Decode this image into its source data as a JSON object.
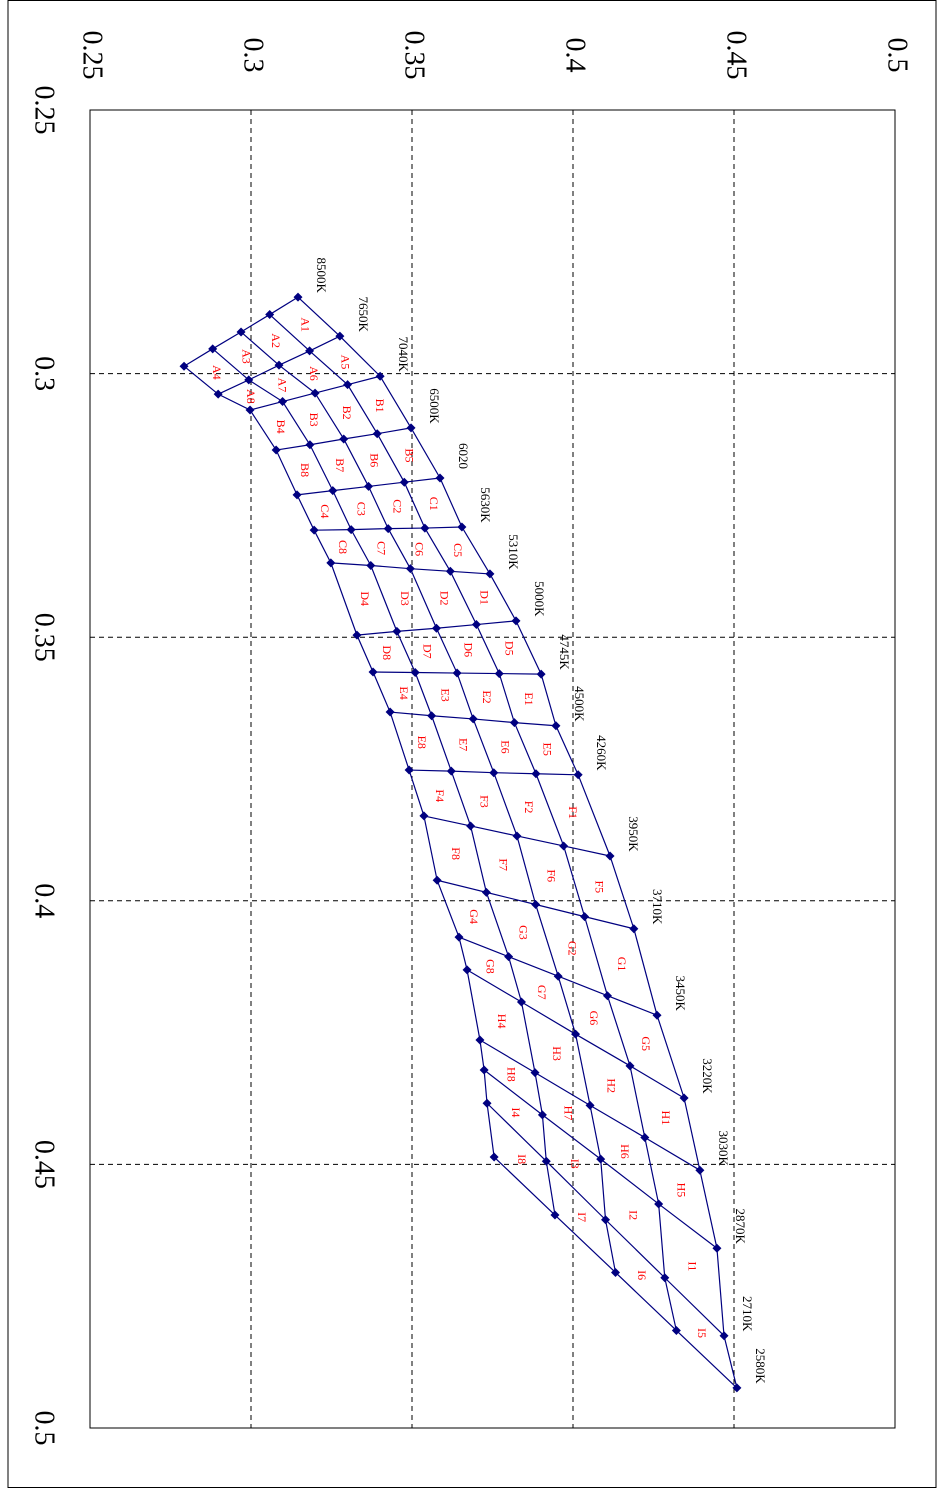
{
  "chart_data": {
    "type": "bin-grid",
    "xlim": [
      0.25,
      0.5
    ],
    "ylim": [
      0.25,
      0.5
    ],
    "xticks": [
      0.25,
      0.3,
      0.35,
      0.4,
      0.45,
      0.5
    ],
    "yticks": [
      0.25,
      0.3,
      0.35,
      0.4,
      0.45,
      0.5
    ],
    "grid": true,
    "color": "#000080",
    "label_color": "#ff0000",
    "lines": [
      {
        "name": "8500K",
        "x": [
          0.2855,
          0.2888,
          0.2921,
          0.2953,
          0.2986
        ],
        "y": [
          0.3146,
          0.3058,
          0.2969,
          0.2881,
          0.2792
        ]
      },
      {
        "name": "7650K",
        "x": [
          0.2929,
          0.2957,
          0.2984,
          0.3012,
          0.3039
        ],
        "y": [
          0.3276,
          0.3182,
          0.3087,
          0.2993,
          0.2898
        ]
      },
      {
        "name": "7040K",
        "x": [
          0.3005,
          0.3021,
          0.3037,
          0.3053,
          0.3069
        ],
        "y": [
          0.3401,
          0.33,
          0.3199,
          0.3098,
          0.2997
        ]
      },
      {
        "name": "6500K",
        "x": [
          0.3103,
          0.3114,
          0.3124,
          0.3135,
          0.3145
        ],
        "y": [
          0.3497,
          0.3392,
          0.3288,
          0.3183,
          0.3078
        ]
      },
      {
        "name": "6020",
        "x": [
          0.3198,
          0.3206,
          0.3214,
          0.3222,
          0.323
        ],
        "y": [
          0.3587,
          0.3476,
          0.3365,
          0.3254,
          0.3143
        ]
      },
      {
        "name": "5630K",
        "x": [
          0.3291,
          0.3293,
          0.3294,
          0.3296,
          0.3297
        ],
        "y": [
          0.3655,
          0.354,
          0.3426,
          0.3311,
          0.3196
        ]
      },
      {
        "name": "5310K",
        "x": [
          0.338,
          0.3375,
          0.337,
          0.3364,
          0.3359
        ],
        "y": [
          0.3742,
          0.3619,
          0.3495,
          0.3372,
          0.3248
        ]
      },
      {
        "name": "5000K",
        "x": [
          0.3469,
          0.3476,
          0.3483,
          0.3489,
          0.3496
        ],
        "y": [
          0.3823,
          0.37,
          0.3576,
          0.3453,
          0.3329
        ]
      },
      {
        "name": "4745K",
        "x": [
          0.357,
          0.3569,
          0.3568,
          0.3567,
          0.3566
        ],
        "y": [
          0.3901,
          0.3771,
          0.364,
          0.351,
          0.3379
        ]
      },
      {
        "name": "4500K",
        "x": [
          0.3668,
          0.3662,
          0.3655,
          0.3649,
          0.3642
        ],
        "y": [
          0.3947,
          0.3818,
          0.369,
          0.3561,
          0.3432
        ]
      },
      {
        "name": "4260K",
        "x": [
          0.3761,
          0.3759,
          0.3757,
          0.3754,
          0.3752
        ],
        "y": [
          0.4016,
          0.3885,
          0.3754,
          0.3622,
          0.3491
        ]
      },
      {
        "name": "3950K",
        "x": [
          0.3915,
          0.3896,
          0.3877,
          0.3858,
          0.3839
        ],
        "y": [
          0.4115,
          0.3971,
          0.3826,
          0.3682,
          0.3537
        ]
      },
      {
        "name": "3710K",
        "x": [
          0.4053,
          0.403,
          0.4007,
          0.3984,
          0.3961
        ],
        "y": [
          0.4189,
          0.4036,
          0.3884,
          0.3731,
          0.3578
        ]
      },
      {
        "name": "3450K",
        "x": [
          0.4217,
          0.418,
          0.4143,
          0.4106,
          0.4069
        ],
        "y": [
          0.4261,
          0.4107,
          0.3954,
          0.38,
          0.3646
        ]
      },
      {
        "name": "3220K",
        "x": [
          0.4374,
          0.4313,
          0.4253,
          0.4192,
          0.4131
        ],
        "y": [
          0.4345,
          0.4177,
          0.4008,
          0.384,
          0.3671
        ]
      },
      {
        "name": "3030K",
        "x": [
          0.4511,
          0.4449,
          0.4388,
          0.4326,
          0.4264
        ],
        "y": [
          0.4394,
          0.4223,
          0.4053,
          0.3882,
          0.3711
        ]
      },
      {
        "name": "2870K",
        "x": [
          0.4659,
          0.4575,
          0.449,
          0.4406,
          0.4321
        ],
        "y": [
          0.4447,
          0.4266,
          0.4086,
          0.3905,
          0.3724
        ]
      },
      {
        "name": "2710K",
        "x": [
          0.4825,
          0.4715,
          0.4605,
          0.4494,
          0.4384
        ],
        "y": [
          0.4469,
          0.4285,
          0.4101,
          0.3917,
          0.3733
        ]
      },
      {
        "name": "2580K",
        "x": [
          0.4924,
          0.4815,
          0.4705,
          0.4596,
          0.4486
        ],
        "y": [
          0.4509,
          0.4321,
          0.4132,
          0.3944,
          0.3755
        ]
      }
    ],
    "bin_labels": [
      [
        "A1",
        "A2",
        "A3",
        "A4"
      ],
      [
        "A5",
        "A6",
        "A7",
        "A8"
      ],
      [
        "B1",
        "B2",
        "B3",
        "B4"
      ],
      [
        "B5",
        "B6",
        "B7",
        "B8"
      ],
      [
        "C1",
        "C2",
        "C3",
        "C4"
      ],
      [
        "C5",
        "C6",
        "C7",
        "C8"
      ],
      [
        "D1",
        "D2",
        "D3",
        "D4"
      ],
      [
        "D5",
        "D6",
        "D7",
        "D8"
      ],
      [
        "E1",
        "E2",
        "E3",
        "E4"
      ],
      [
        "E5",
        "E6",
        "E7",
        "E8"
      ],
      [
        "F1",
        "F2",
        "F3",
        "F4"
      ],
      [
        "F5",
        "F6",
        "F7",
        "F8"
      ],
      [
        "G1",
        "G2",
        "G3",
        "G4"
      ],
      [
        "G5",
        "G6",
        "G7",
        "G8"
      ],
      [
        "H1",
        "H2",
        "H3",
        "H4"
      ],
      [
        "H5",
        "H6",
        "H7",
        "H8"
      ],
      [
        "I1",
        "I2",
        "I3",
        "I4"
      ],
      [
        "I5",
        "I6",
        "I7",
        "I8"
      ]
    ]
  }
}
